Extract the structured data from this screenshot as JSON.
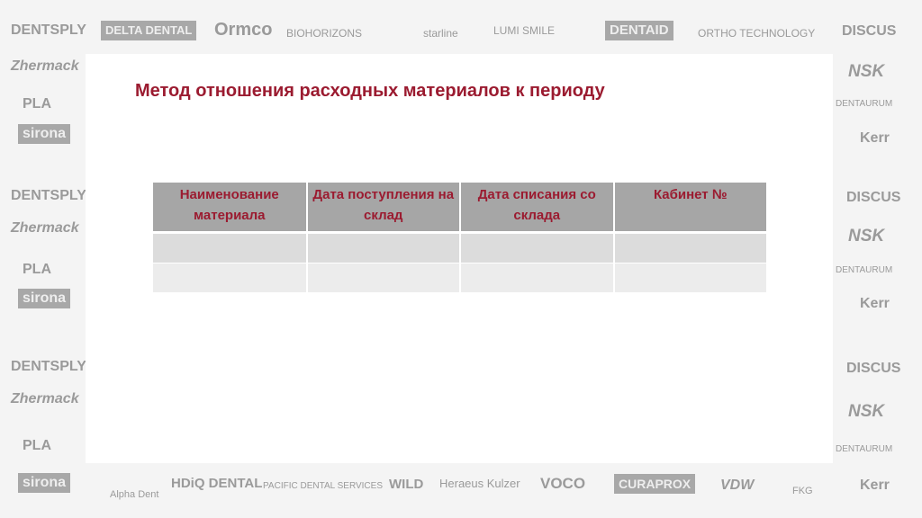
{
  "title": "Метод отношения расходных материалов к периоду",
  "table": {
    "headers": [
      "Наименование материала",
      "Дата поступления на склад",
      "Дата списания со склада",
      "Кабинет №"
    ],
    "rows": [
      [
        "",
        "",
        "",
        ""
      ],
      [
        "",
        "",
        "",
        ""
      ]
    ]
  },
  "logos": {
    "top": [
      "DENTSPLY",
      "DELTA DENTAL",
      "Ormco",
      "BIOHORIZONS",
      "starline",
      "LUMI SMILE",
      "DENTAID",
      "ORTHO TECHNOLOGY",
      "DISCUS"
    ],
    "left": [
      "Zhermack",
      "PLA",
      "sirona",
      "DENTSPLY",
      "Zhermack",
      "PLA",
      "sirona",
      "DENTSPLY",
      "Zhermack",
      "PLA"
    ],
    "right": [
      "NSK",
      "DENTAURUM",
      "Kerr",
      "DISCUS",
      "NSK",
      "DENTAURUM",
      "Kerr",
      "DISCUS",
      "NSK",
      "DENTAURUM"
    ],
    "bottom": [
      "sirona",
      "Alpha Dent",
      "HDiQ DENTAL",
      "PACIFIC DENTAL SERVICES",
      "WILD",
      "Heraeus Kulzer",
      "VOCO",
      "CURAPROX",
      "VDW",
      "FKG",
      "Kerr"
    ]
  },
  "colors": {
    "title": "#9b1b30",
    "header_bg": "#a6a6a6",
    "row1_bg": "#dcdcdc",
    "row2_bg": "#ececec"
  }
}
